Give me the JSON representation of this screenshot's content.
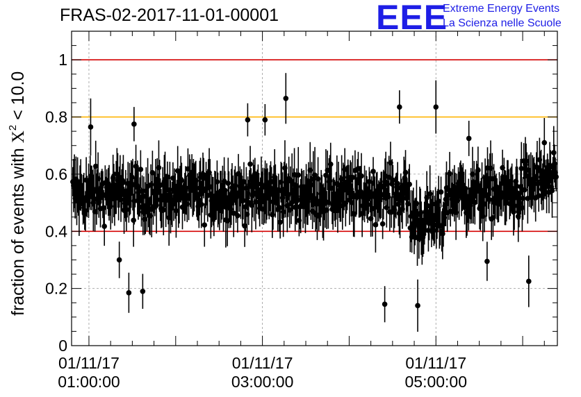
{
  "header": {
    "title": "FRAS-02-2017-11-01-00001",
    "logo_letters": "EEE",
    "logo_line1": "Extreme Energy Events",
    "logo_line2": "La Scienza nelle Scuole"
  },
  "colors": {
    "points": "#000000",
    "limit_red": "#d40000",
    "limit_orange": "#ffb400",
    "grid": "#999999",
    "logo": "#1e1ee6"
  },
  "chart_data": {
    "type": "scatter",
    "title": "FRAS-02-2017-11-01-00001",
    "ylabel_prefix": "fraction of events with ",
    "ylabel_symbol": "X",
    "ylabel_sup": "2",
    "ylabel_suffix": " < 10.0",
    "ylim": [
      0,
      1.1
    ],
    "yticks": [
      "0",
      "0.2",
      "0.4",
      "0.6",
      "0.8",
      "1"
    ],
    "ytick_values": [
      0,
      0.2,
      0.4,
      0.6,
      0.8,
      1.0
    ],
    "xlim_hours": [
      0.8,
      6.4
    ],
    "xticks": [
      {
        "hour": 1.0,
        "date": "01/11/17",
        "time": "01:00:00"
      },
      {
        "hour": 3.0,
        "date": "01/11/17",
        "time": "03:00:00"
      },
      {
        "hour": 5.0,
        "date": "01/11/17",
        "time": "05:00:00"
      }
    ],
    "grid": true,
    "reference_lines": [
      {
        "y": 1.0,
        "color": "#d40000"
      },
      {
        "y": 0.8,
        "color": "#ffb400"
      },
      {
        "y": 0.4,
        "color": "#d40000"
      }
    ],
    "highlighted_points": [
      {
        "x": 3.27,
        "y": 0.865
      },
      {
        "x": 2.83,
        "y": 0.79
      },
      {
        "x": 3.03,
        "y": 0.79
      },
      {
        "x": 4.58,
        "y": 0.835
      },
      {
        "x": 5.0,
        "y": 0.835
      },
      {
        "x": 1.02,
        "y": 0.765
      },
      {
        "x": 1.52,
        "y": 0.775
      },
      {
        "x": 5.38,
        "y": 0.725
      },
      {
        "x": 6.25,
        "y": 0.71
      },
      {
        "x": 1.35,
        "y": 0.3
      },
      {
        "x": 1.46,
        "y": 0.185
      },
      {
        "x": 1.62,
        "y": 0.19
      },
      {
        "x": 4.41,
        "y": 0.145
      },
      {
        "x": 4.79,
        "y": 0.14
      },
      {
        "x": 6.07,
        "y": 0.225
      },
      {
        "x": 5.59,
        "y": 0.295
      }
    ],
    "points_per_hour_fill": 110
  }
}
